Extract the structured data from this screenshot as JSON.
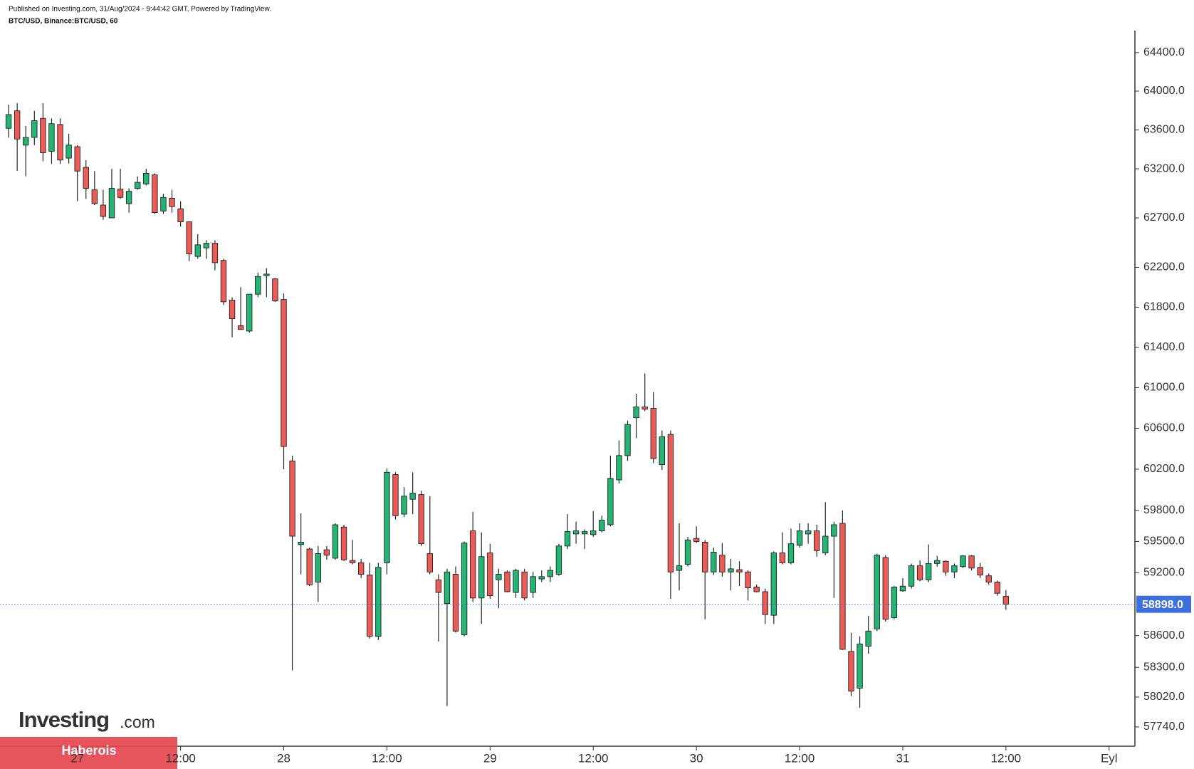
{
  "chart_data": {
    "type": "candlestick",
    "subtitle": "Published on Investing.com, 31/Aug/2024 - 9:44:42 GMT, Powered by TradingView.",
    "title": "BTC/USD, Binance:BTC/USD, 60",
    "logo": "Investing",
    "logo_suffix": ".com",
    "badge": "Haberois",
    "log": true,
    "up_color": "#22b573",
    "down_color": "#ec5b56",
    "last_price_color": "#3d6fe0",
    "x": [
      -8,
      -7,
      -6,
      -5,
      -4,
      -3,
      -2,
      -1,
      0,
      1,
      2,
      3,
      4,
      5,
      6,
      7,
      8,
      9,
      10,
      11,
      12,
      13,
      14,
      15,
      16,
      17,
      18,
      19,
      20,
      21,
      22,
      23,
      24,
      25,
      26,
      27,
      28,
      29,
      30,
      31,
      32,
      33,
      34,
      35,
      36,
      37,
      38,
      39,
      40,
      41,
      42,
      43,
      44,
      45,
      46,
      47,
      48,
      49,
      50,
      51,
      52,
      53,
      54,
      55,
      56,
      57,
      58,
      59,
      60,
      61,
      62,
      63,
      64,
      65,
      66,
      67,
      68,
      69,
      70,
      71,
      72,
      73,
      74,
      75,
      76,
      77,
      78,
      79,
      80,
      81,
      82,
      83,
      84,
      85,
      86,
      87,
      88,
      89,
      90,
      91,
      92,
      93,
      94,
      95,
      96,
      97,
      98,
      99,
      100,
      101,
      102,
      103,
      104,
      105,
      106,
      107,
      108
    ],
    "open": [
      63616,
      63796,
      63443,
      63522,
      63718,
      63380,
      63655,
      63310,
      63427,
      63215,
      62985,
      62830,
      62700,
      62993,
      62846,
      63000,
      63046,
      63138,
      62770,
      62900,
      62792,
      62660,
      62310,
      62396,
      62443,
      62270,
      61870,
      61615,
      61562,
      61930,
      62116,
      62084,
      61877,
      60281,
      59470,
      59427,
      59110,
      59420,
      59339,
      59639,
      59317,
      59295,
      59177,
      58593,
      59295,
      60148,
      59764,
      59908,
      59953,
      59383,
      59132,
      58905,
      59185,
      58607,
      59602,
      58958,
      59390,
      59132,
      59207,
      59011,
      59207,
      59011,
      59140,
      59162,
      59185,
      59456,
      59573,
      59573,
      59566,
      59602,
      59661,
      60096,
      60333,
      60704,
      60810,
      60796,
      60244,
      60540,
      59222,
      59280,
      59529,
      59493,
      59207,
      59368,
      59207,
      59229,
      59207,
      59063,
      59018,
      58793,
      59390,
      59295,
      59463,
      59573,
      59602,
      59390,
      59551,
      59675,
      58450,
      58104,
      58500,
      58664,
      59346,
      58770,
      59026,
      59071,
      59266,
      59132,
      59288,
      59310,
      59207,
      59258,
      59361,
      59251,
      59170,
      59110,
      58973
    ],
    "high": [
      63860,
      63875,
      63640,
      63796,
      63875,
      63718,
      63718,
      63560,
      63443,
      63290,
      63177,
      62985,
      63200,
      63200,
      63000,
      63123,
      63200,
      63154,
      62946,
      62985,
      62870,
      62660,
      62536,
      62474,
      62474,
      62286,
      61900,
      62000,
      61930,
      62147,
      62192,
      62092,
      61938,
      60333,
      59771,
      59441,
      59456,
      59456,
      59675,
      59661,
      59515,
      59332,
      59295,
      59295,
      60207,
      60170,
      60025,
      60170,
      59990,
      59938,
      59185,
      59237,
      59260,
      59500,
      59786,
      59588,
      59478,
      59237,
      59222,
      59237,
      59237,
      59207,
      59222,
      59260,
      59478,
      59764,
      59690,
      59617,
      59793,
      59749,
      60333,
      60481,
      60674,
      60940,
      61140,
      60955,
      60578,
      60578,
      59675,
      59544,
      59646,
      59515,
      59441,
      59485,
      59332,
      59310,
      59222,
      59086,
      59048,
      59405,
      59588,
      59624,
      59675,
      59675,
      59661,
      59880,
      59690,
      59800,
      58628,
      58593,
      58786,
      59383,
      59368,
      59071,
      59148,
      59288,
      59317,
      59471,
      59361,
      59317,
      59288,
      59368,
      59368,
      59295,
      59192,
      59125,
      59033
    ],
    "low": [
      63520,
      63180,
      63123,
      63443,
      63277,
      63250,
      63250,
      63254,
      62870,
      62893,
      62830,
      62680,
      62700,
      62893,
      62753,
      62985,
      63030,
      62740,
      62740,
      62753,
      62614,
      62262,
      62286,
      62286,
      62170,
      61823,
      61500,
      61577,
      61546,
      61900,
      61900,
      61854,
      60200,
      58272,
      59185,
      59071,
      58920,
      59324,
      59324,
      59310,
      59280,
      59148,
      58572,
      58557,
      59185,
      59712,
      59735,
      59764,
      59456,
      59185,
      58543,
      57935,
      58628,
      58593,
      58920,
      58710,
      58950,
      58860,
      59011,
      58958,
      58935,
      58958,
      59110,
      59110,
      59170,
      59427,
      59478,
      59427,
      59544,
      59588,
      59646,
      60060,
      60281,
      60504,
      60770,
      60259,
      60193,
      58950,
      59030,
      59260,
      59485,
      58755,
      59177,
      59162,
      59030,
      59071,
      58935,
      59011,
      58710,
      58710,
      59280,
      59280,
      59441,
      59478,
      59354,
      59368,
      58958,
      58464,
      58027,
      57920,
      58429,
      58643,
      58733,
      58755,
      59018,
      59048,
      59117,
      59110,
      59258,
      59170,
      59148,
      59244,
      59222,
      59148,
      59086,
      58980,
      58845
    ],
    "close": [
      63757,
      63506,
      63522,
      63694,
      63365,
      63663,
      63290,
      63443,
      63177,
      63000,
      62846,
      62715,
      63000,
      62908,
      62970,
      63062,
      63154,
      62754,
      62908,
      62815,
      62660,
      62335,
      62427,
      62443,
      62247,
      61854,
      61685,
      61577,
      61930,
      62108,
      62132,
      61862,
      60422,
      59551,
      59493,
      59086,
      59383,
      59368,
      59661,
      59324,
      59295,
      59185,
      58593,
      59251,
      60170,
      59749,
      59938,
      59967,
      59478,
      59207,
      59011,
      59207,
      58643,
      59485,
      58958,
      59354,
      58980,
      59185,
      59018,
      59222,
      58958,
      59162,
      59162,
      59222,
      59456,
      59595,
      59602,
      59595,
      59602,
      59705,
      60111,
      60333,
      60637,
      60810,
      60788,
      60304,
      60518,
      59207,
      59266,
      59515,
      59500,
      59207,
      59397,
      59207,
      59237,
      59207,
      59055,
      59018,
      58800,
      59390,
      59295,
      59478,
      59602,
      59602,
      59412,
      59551,
      59661,
      58470,
      58076,
      58521,
      58643,
      59368,
      58755,
      59063,
      59071,
      59266,
      59132,
      59288,
      59317,
      59207,
      59266,
      59361,
      59244,
      59177,
      59110,
      59003,
      58898
    ],
    "ylim": [
      57560,
      64630
    ],
    "yticks": [
      {
        "value": 64400,
        "label": "64400.0"
      },
      {
        "value": 64000,
        "label": "64000.0"
      },
      {
        "value": 63600,
        "label": "63600.0"
      },
      {
        "value": 63200,
        "label": "63200.0"
      },
      {
        "value": 62700,
        "label": "62700.0"
      },
      {
        "value": 62200,
        "label": "62200.0"
      },
      {
        "value": 61800,
        "label": "61800.0"
      },
      {
        "value": 61400,
        "label": "61400.0"
      },
      {
        "value": 61000,
        "label": "61000.0"
      },
      {
        "value": 60600,
        "label": "60600.0"
      },
      {
        "value": 60200,
        "label": "60200.0"
      },
      {
        "value": 59800,
        "label": "59800.0"
      },
      {
        "value": 59500,
        "label": "59500.0"
      },
      {
        "value": 59200,
        "label": "59200.0"
      },
      {
        "value": 58600,
        "label": "58600.0"
      },
      {
        "value": 58300,
        "label": "58300.0"
      },
      {
        "value": 58020,
        "label": "58020.0"
      },
      {
        "value": 57740,
        "label": "57740.0"
      }
    ],
    "last_price": {
      "value": 58898,
      "label": "58898.0"
    },
    "xlim": [
      -9,
      123
    ],
    "xticks": [
      {
        "value": 0,
        "label": "27"
      },
      {
        "value": 12,
        "label": "12:00"
      },
      {
        "value": 24,
        "label": "28"
      },
      {
        "value": 36,
        "label": "12:00"
      },
      {
        "value": 48,
        "label": "29"
      },
      {
        "value": 60,
        "label": "12:00"
      },
      {
        "value": 72,
        "label": "30"
      },
      {
        "value": 84,
        "label": "12:00"
      },
      {
        "value": 96,
        "label": "31"
      },
      {
        "value": 108,
        "label": "12:00"
      },
      {
        "value": 120,
        "label": "Eyl"
      }
    ]
  }
}
